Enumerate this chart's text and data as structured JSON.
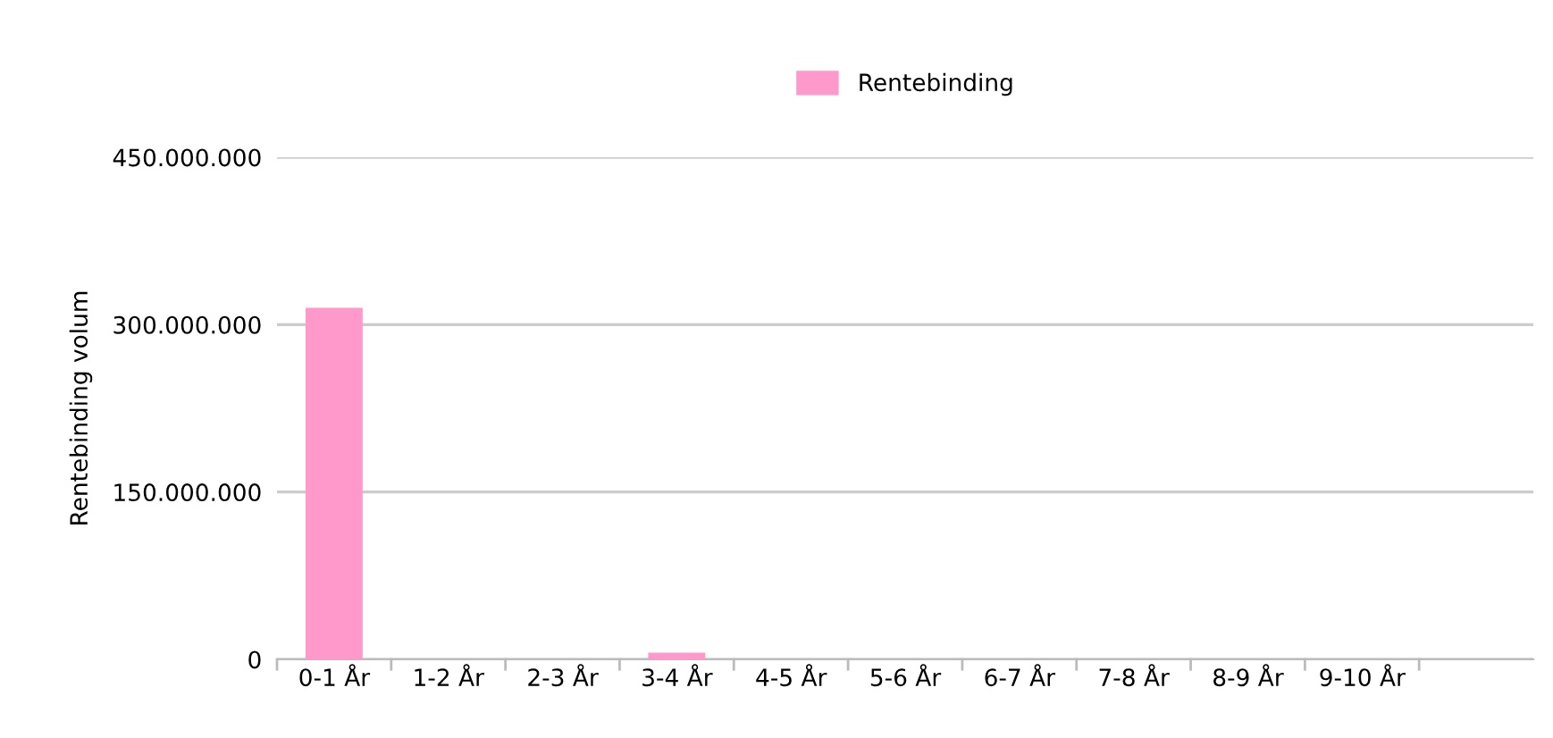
{
  "chart_data": {
    "type": "bar",
    "categories": [
      "0-1 År",
      "1-2 År",
      "2-3 År",
      "3-4 År",
      "4-5 År",
      "5-6 År",
      "6-7 År",
      "7-8 År",
      "8-9 År",
      "9-10 År",
      null
    ],
    "series": [
      {
        "name": "Rentebinding",
        "color": "#ff99cc",
        "values": [
          315000000,
          0,
          0,
          6000000,
          0,
          0,
          0,
          0,
          0,
          0,
          0
        ]
      }
    ],
    "ylabel": "Rentebinding volum",
    "ylim": [
      0,
      450000000
    ],
    "yticks": [
      {
        "value": 0,
        "label": "0"
      },
      {
        "value": 150000000,
        "label": "150.000.000"
      },
      {
        "value": 300000000,
        "label": "300.000.000"
      },
      {
        "value": 450000000,
        "label": "450.000.000"
      }
    ],
    "grid": "y",
    "legend": "top"
  }
}
